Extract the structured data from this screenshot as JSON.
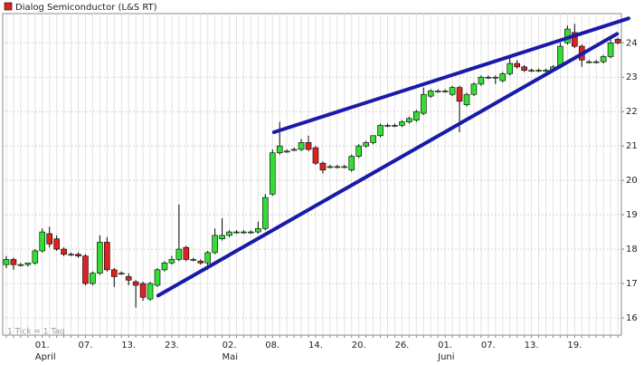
{
  "chart_data": {
    "type": "candlestick",
    "title": "Dialog Semiconductor (L&S RT)",
    "note": "1 Tick = 1 Tag",
    "categories": [
      null,
      null,
      null,
      null,
      null,
      "01.",
      null,
      null,
      null,
      null,
      null,
      "07.",
      null,
      null,
      null,
      null,
      null,
      "13.",
      null,
      null,
      null,
      null,
      null,
      "23.",
      null,
      null,
      null,
      null,
      null,
      null,
      null,
      "02.",
      null,
      null,
      null,
      null,
      null,
      "08.",
      null,
      null,
      null,
      null,
      null,
      "14.",
      null,
      null,
      null,
      null,
      null,
      "20.",
      null,
      null,
      null,
      null,
      null,
      "26.",
      null,
      null,
      null,
      null,
      null,
      "01.",
      null,
      null,
      null,
      null,
      null,
      "07.",
      null,
      null,
      null,
      null,
      null,
      "13.",
      null,
      null,
      null,
      null,
      null,
      "19.",
      null,
      null,
      null,
      null,
      null,
      null
    ],
    "category_groups": [
      null,
      null,
      null,
      null,
      null,
      "April",
      null,
      null,
      null,
      null,
      null,
      null,
      null,
      null,
      null,
      null,
      null,
      null,
      null,
      null,
      null,
      null,
      null,
      null,
      null,
      null,
      null,
      null,
      null,
      null,
      null,
      "Mai",
      null,
      null,
      null,
      null,
      null,
      null,
      null,
      null,
      null,
      null,
      null,
      null,
      null,
      null,
      null,
      null,
      null,
      null,
      null,
      null,
      null,
      null,
      null,
      null,
      null,
      null,
      null,
      null,
      null,
      "Juni",
      null,
      null,
      null,
      null,
      null,
      null,
      null,
      null,
      null,
      null,
      null,
      null,
      null,
      null,
      null,
      null,
      null,
      null,
      null,
      null,
      null,
      null,
      null,
      null
    ],
    "open": [
      17.55,
      17.7,
      17.55,
      17.55,
      17.6,
      17.95,
      18.45,
      18.3,
      18.0,
      17.85,
      17.85,
      17.8,
      17.0,
      17.3,
      18.2,
      17.4,
      17.3,
      17.2,
      17.05,
      17.0,
      16.55,
      16.95,
      17.4,
      17.6,
      17.7,
      18.05,
      17.7,
      17.65,
      17.6,
      17.9,
      18.3,
      18.4,
      18.5,
      18.5,
      18.5,
      18.5,
      18.6,
      19.6,
      20.8,
      20.85,
      20.9,
      20.9,
      21.1,
      20.95,
      20.5,
      20.4,
      20.4,
      20.4,
      20.3,
      20.7,
      21.0,
      21.1,
      21.3,
      21.6,
      21.6,
      21.6,
      21.7,
      21.75,
      21.95,
      22.45,
      22.6,
      22.6,
      22.5,
      22.7,
      22.2,
      22.5,
      22.8,
      23.0,
      23.0,
      22.9,
      23.1,
      23.4,
      23.3,
      23.2,
      23.2,
      23.2,
      23.2,
      23.3,
      24.0,
      24.3,
      23.9,
      23.45,
      23.45,
      23.45,
      23.6,
      24.1
    ],
    "high": [
      17.8,
      17.75,
      17.6,
      17.6,
      18.0,
      18.6,
      18.65,
      18.4,
      18.05,
      17.9,
      17.9,
      17.85,
      17.35,
      18.4,
      18.35,
      17.45,
      17.35,
      17.3,
      17.1,
      17.05,
      17.05,
      17.45,
      17.65,
      17.8,
      19.3,
      18.1,
      17.75,
      17.7,
      17.95,
      18.6,
      18.9,
      18.55,
      18.55,
      18.55,
      18.55,
      18.8,
      19.6,
      20.9,
      21.7,
      20.9,
      20.95,
      21.2,
      21.3,
      21.0,
      20.55,
      20.45,
      20.45,
      20.45,
      20.75,
      21.05,
      21.15,
      21.3,
      21.65,
      21.65,
      21.65,
      21.75,
      21.85,
      22.05,
      22.7,
      22.65,
      22.65,
      22.65,
      22.75,
      22.75,
      22.55,
      22.85,
      23.05,
      23.05,
      23.05,
      23.15,
      23.6,
      23.5,
      23.35,
      23.25,
      23.25,
      23.25,
      23.35,
      24.0,
      24.5,
      24.55,
      23.95,
      23.5,
      23.5,
      23.65,
      24.1,
      24.15
    ],
    "low": [
      17.45,
      17.4,
      17.5,
      17.5,
      17.55,
      17.9,
      18.05,
      17.95,
      17.8,
      17.8,
      17.75,
      16.95,
      16.95,
      17.25,
      17.35,
      16.9,
      17.25,
      16.95,
      16.3,
      16.5,
      16.5,
      16.9,
      17.35,
      17.55,
      17.65,
      17.65,
      17.65,
      17.55,
      17.4,
      17.85,
      18.25,
      18.35,
      18.45,
      18.45,
      18.45,
      18.45,
      18.55,
      19.55,
      20.75,
      20.8,
      20.85,
      20.85,
      20.85,
      20.45,
      20.2,
      20.35,
      20.35,
      20.35,
      20.25,
      20.65,
      20.95,
      21.05,
      21.25,
      21.55,
      21.55,
      21.55,
      21.65,
      21.7,
      21.9,
      22.4,
      22.55,
      22.55,
      22.45,
      21.4,
      22.15,
      22.45,
      22.75,
      22.95,
      22.8,
      22.85,
      23.05,
      23.25,
      23.15,
      23.15,
      23.15,
      23.15,
      23.15,
      23.25,
      23.95,
      23.85,
      23.3,
      23.4,
      23.4,
      23.4,
      23.55,
      23.95
    ],
    "close": [
      17.7,
      17.55,
      17.55,
      17.6,
      17.95,
      18.5,
      18.15,
      18.0,
      17.85,
      17.85,
      17.8,
      17.0,
      17.3,
      18.2,
      17.4,
      17.2,
      17.3,
      17.1,
      16.95,
      16.6,
      17.0,
      17.4,
      17.6,
      17.7,
      18.0,
      17.7,
      17.7,
      17.6,
      17.9,
      18.4,
      18.4,
      18.5,
      18.5,
      18.5,
      18.5,
      18.6,
      19.5,
      20.8,
      21.0,
      20.85,
      20.9,
      21.1,
      20.9,
      20.5,
      20.3,
      20.4,
      20.4,
      20.4,
      20.7,
      21.0,
      21.1,
      21.3,
      21.6,
      21.6,
      21.6,
      21.7,
      21.8,
      22.0,
      22.5,
      22.6,
      22.6,
      22.6,
      22.7,
      22.3,
      22.5,
      22.8,
      23.0,
      23.0,
      23.0,
      23.1,
      23.4,
      23.3,
      23.2,
      23.2,
      23.2,
      23.2,
      23.3,
      23.9,
      24.4,
      23.9,
      23.5,
      23.45,
      23.45,
      23.6,
      24.0,
      24.0
    ],
    "up_color": "#33dd33",
    "down_color": "#dd2222",
    "ylim": [
      15.5,
      24.85
    ],
    "yticks": [
      16,
      17,
      18,
      19,
      20,
      21,
      22,
      23,
      24
    ],
    "grid": true,
    "trendlines": [
      {
        "x": [
          21.1,
          84.9
        ],
        "y": [
          16.65,
          24.26
        ]
      },
      {
        "x": [
          37.2,
          86.5
        ],
        "y": [
          21.4,
          24.71
        ]
      }
    ],
    "trendline_color": "#1a1aaa"
  }
}
